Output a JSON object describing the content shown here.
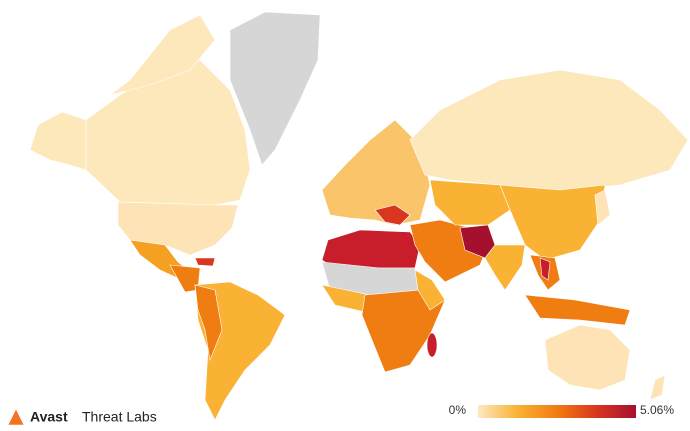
{
  "brand": {
    "name": "Avast",
    "product": "Threat Labs"
  },
  "legend": {
    "min": {
      "value": 0,
      "label": "0%"
    },
    "max": {
      "value": 5.06,
      "label": "5.06%"
    },
    "colors": [
      "#fde9c0",
      "#f9b233",
      "#f07d12",
      "#d9361f",
      "#a5102e"
    ]
  }
}
